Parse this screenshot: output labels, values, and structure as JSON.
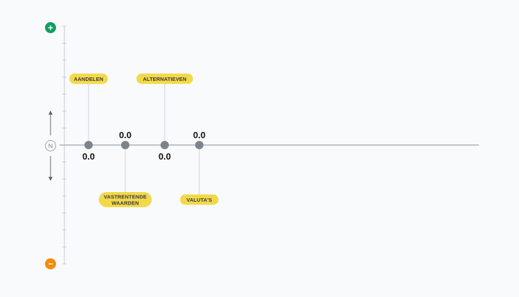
{
  "chart_data": {
    "type": "scatter",
    "scale": {
      "top_label": "+",
      "bottom_label": "−",
      "center_label": "N"
    },
    "ylim": [
      -5,
      5
    ],
    "items": [
      {
        "label": "AANDELEN",
        "value": 0.0,
        "value_text": "0.0",
        "label_side": "top"
      },
      {
        "label": "VASTRENTENDE WAARDEN",
        "value": 0.0,
        "value_text": "0.0",
        "label_side": "bottom"
      },
      {
        "label": "ALTERNATIEVEN",
        "value": 0.0,
        "value_text": "0.0",
        "label_side": "top"
      },
      {
        "label": "VALUTA'S",
        "value": 0.0,
        "value_text": "0.0",
        "label_side": "bottom"
      }
    ],
    "colors": {
      "positive": "#10a060",
      "negative": "#f28c0f",
      "pill": "#f2d94a",
      "dot": "#7b838c",
      "axis": "#aab0b6"
    }
  }
}
